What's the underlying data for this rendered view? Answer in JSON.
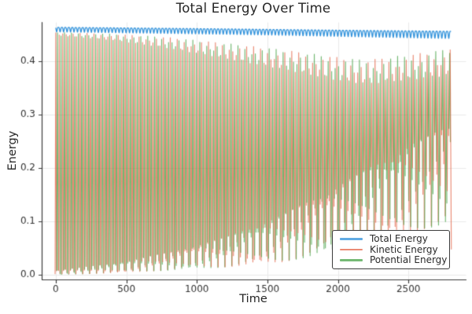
{
  "chart_data": {
    "type": "line",
    "title": "Total Energy Over Time",
    "xlabel": "Time",
    "ylabel": "Energy",
    "xlim": [
      -100,
      2906
    ],
    "ylim": [
      -0.0081,
      0.4735
    ],
    "xticks": [
      0,
      500,
      1000,
      1500,
      2000,
      2500
    ],
    "xtick_labels": [
      "0",
      "500",
      "1000",
      "1500",
      "2000",
      "2500"
    ],
    "yticks": [
      0.0,
      0.1,
      0.2,
      0.3,
      0.4
    ],
    "ytick_labels": [
      "0.0",
      "0.1",
      "0.2",
      "0.3",
      "0.4"
    ],
    "grid": true,
    "legend": {
      "position": "lower-right",
      "items": [
        {
          "label": "Total Energy",
          "color": "#1e88d8"
        },
        {
          "label": "Kinetic Energy",
          "color": "#e25a3b"
        },
        {
          "label": "Potential Energy",
          "color": "#3a9d3a"
        }
      ]
    },
    "series": [
      {
        "name": "Total Energy",
        "color": "#1e88d8",
        "style": "continuous-wavy-line",
        "description": "Nearly constant total energy ~0.455-0.464, slowly decaying, with small periodic dips",
        "base": [
          [
            0,
            0.4635
          ],
          [
            1200,
            0.4605
          ],
          [
            2000,
            0.458
          ],
          [
            2800,
            0.456
          ]
        ],
        "dip_amp": [
          [
            0,
            0.0085
          ],
          [
            1600,
            0.0105
          ],
          [
            2800,
            0.0135
          ]
        ],
        "period": 24.6,
        "alpha": 0.9
      },
      {
        "name": "Kinetic Energy",
        "color": "#e25a3b",
        "style": "rapid-oscillation-spikes",
        "phase_offset": 0,
        "description": "Fast oscillation between lower and upper envelopes, antiphase-interleaved with potential energy"
      },
      {
        "name": "Potential Energy",
        "color": "#3a9d3a",
        "style": "rapid-oscillation-spikes",
        "phase_offset": 12.3,
        "description": "Fast oscillation between lower and upper envelopes, interleaved with kinetic energy"
      }
    ],
    "spike_synthesis": {
      "t_start": 0,
      "t_end": 2800,
      "spike_period": 24.6,
      "tent_halfwidth": 5.0,
      "top_center": [
        [
          0,
          0.451
        ],
        [
          400,
          0.445
        ],
        [
          800,
          0.434
        ],
        [
          1200,
          0.419
        ],
        [
          1600,
          0.403
        ],
        [
          2000,
          0.385
        ],
        [
          2200,
          0.379
        ],
        [
          2500,
          0.388
        ],
        [
          2800,
          0.398
        ]
      ],
      "top_amp": [
        [
          0,
          0.003
        ],
        [
          400,
          0.006
        ],
        [
          800,
          0.0105
        ],
        [
          1200,
          0.0145
        ],
        [
          1600,
          0.0185
        ],
        [
          2000,
          0.022
        ],
        [
          2800,
          0.025
        ]
      ],
      "top_beat": 53.7,
      "top_phase": 0.8,
      "bot_center": [
        [
          0,
          0.0045
        ],
        [
          400,
          0.0125
        ],
        [
          800,
          0.0255
        ],
        [
          1200,
          0.0425
        ],
        [
          1600,
          0.068
        ],
        [
          2000,
          0.105
        ],
        [
          2400,
          0.15
        ],
        [
          2800,
          0.19
        ]
      ],
      "bot_amp": [
        [
          0,
          0.0045
        ],
        [
          400,
          0.009
        ],
        [
          800,
          0.017
        ],
        [
          1200,
          0.028
        ],
        [
          1600,
          0.044
        ],
        [
          2000,
          0.062
        ],
        [
          2400,
          0.078
        ],
        [
          2800,
          0.092
        ]
      ],
      "bot_beat": 50.5,
      "bot_phase": 0,
      "end_drop": {
        "t_from": 2796,
        "t_to": 2804,
        "v_to": 0.048
      }
    },
    "style_colors": {
      "spine": "#3b3b3b",
      "tick": "#3b3b3b",
      "tick_label": "#333333",
      "grid": "#eaeaea",
      "title": "#262626",
      "background": "#ffffff",
      "legend_border": "#3c3c3c",
      "legend_alpha": 0.55,
      "plot_alpha": 0.72
    }
  }
}
